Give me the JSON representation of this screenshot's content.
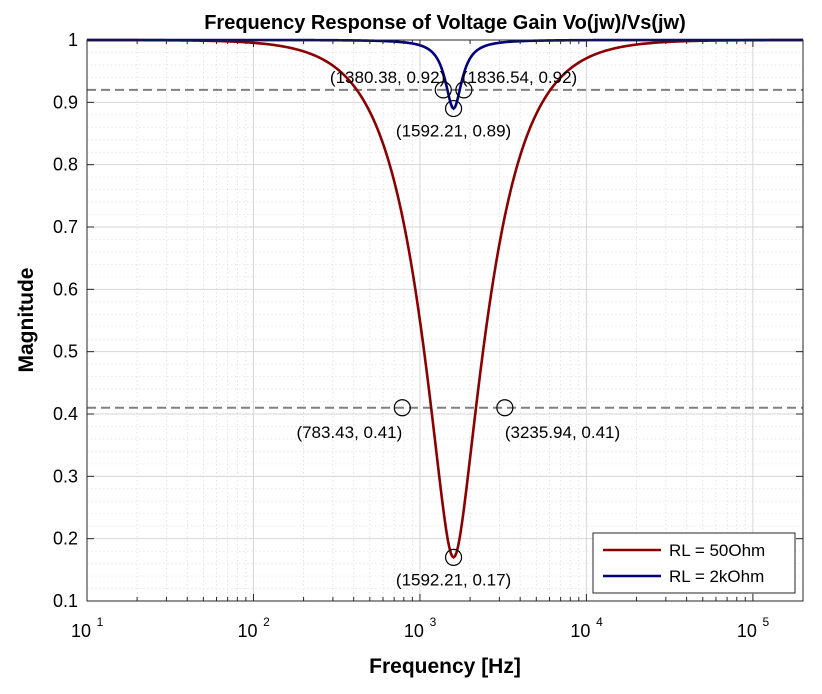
{
  "chart_data": {
    "type": "line",
    "title": "Frequency Response of Voltage Gain Vo(jw)/Vs(jw)",
    "xlabel": "Frequency [Hz]",
    "ylabel": "Magnitude",
    "xscale": "log",
    "xlim": [
      10,
      200000
    ],
    "ylim": [
      0.1,
      1
    ],
    "grid": true,
    "minor_grid": true,
    "legend_position": "bottom-right",
    "x_ticks": [
      {
        "value": 10,
        "base": "10",
        "exp": "1"
      },
      {
        "value": 100,
        "base": "10",
        "exp": "2"
      },
      {
        "value": 1000,
        "base": "10",
        "exp": "3"
      },
      {
        "value": 10000,
        "base": "10",
        "exp": "4"
      },
      {
        "value": 100000,
        "base": "10",
        "exp": "5"
      }
    ],
    "y_ticks": [
      {
        "value": 0.1,
        "label": "0.1"
      },
      {
        "value": 0.2,
        "label": "0.2"
      },
      {
        "value": 0.3,
        "label": "0.3"
      },
      {
        "value": 0.4,
        "label": "0.4"
      },
      {
        "value": 0.5,
        "label": "0.5"
      },
      {
        "value": 0.6,
        "label": "0.6"
      },
      {
        "value": 0.7,
        "label": "0.7"
      },
      {
        "value": 0.8,
        "label": "0.8"
      },
      {
        "value": 0.9,
        "label": "0.9"
      },
      {
        "value": 1,
        "label": "1"
      }
    ],
    "series": [
      {
        "name": "RL = 50Ohm",
        "color": "#8b0000",
        "f0": 1592.21,
        "min": 0.17,
        "bandwidth": 2452.51
      },
      {
        "name": "RL = 2kOhm",
        "color": "#000080",
        "f0": 1592.21,
        "min": 0.89,
        "bandwidth": 456.16
      }
    ],
    "reference_lines": [
      {
        "y": 0.92,
        "color": "#808080",
        "style": "dashed"
      },
      {
        "y": 0.41,
        "color": "#808080",
        "style": "dashed"
      }
    ],
    "markers": [
      {
        "x": 1380.38,
        "y": 0.92,
        "label": "(1380.38, 0.92)",
        "align": "right"
      },
      {
        "x": 1836.54,
        "y": 0.92,
        "label": "(1836.54, 0.92)",
        "align": "left"
      },
      {
        "x": 1592.21,
        "y": 0.89,
        "label": "(1592.21, 0.89)",
        "align": "below"
      },
      {
        "x": 783.43,
        "y": 0.41,
        "label": "(783.43, 0.41)",
        "align": "below-left"
      },
      {
        "x": 3235.94,
        "y": 0.41,
        "label": "(3235.94, 0.41)",
        "align": "below-right"
      },
      {
        "x": 1592.21,
        "y": 0.17,
        "label": "(1592.21, 0.17)",
        "align": "below"
      }
    ]
  }
}
